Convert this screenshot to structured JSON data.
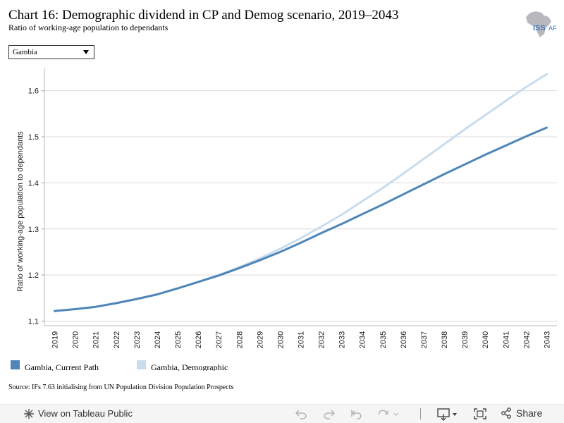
{
  "header": {
    "title": "Chart 16: Demographic dividend in CP and Demog scenario, 2019–2043",
    "subtitle": "Ratio of working-age population to dependants",
    "logo_text": "ISS",
    "logo_suffix": "AF"
  },
  "filter": {
    "selected": "Gambia"
  },
  "chart_data": {
    "type": "line",
    "title": "Chart 16: Demographic dividend in CP and Demog scenario, 2019–2043",
    "subtitle": "Ratio of working-age population to dependants",
    "xlabel": "",
    "ylabel": "Ratio of working-age population to dependants",
    "ylim": [
      1.09,
      1.65
    ],
    "yticks": [
      1.1,
      1.2,
      1.3,
      1.4,
      1.5,
      1.6
    ],
    "grid": true,
    "legend": "bottom-left",
    "x": [
      "2019",
      "2020",
      "2021",
      "2022",
      "2023",
      "2024",
      "2025",
      "2026",
      "2027",
      "2028",
      "2029",
      "2030",
      "2031",
      "2032",
      "2033",
      "2034",
      "2035",
      "2036",
      "2037",
      "2038",
      "2039",
      "2040",
      "2041",
      "2042",
      "2043"
    ],
    "series": [
      {
        "name": "Gambia, Current Path",
        "color": "#4f86b8",
        "values": [
          1.122,
          1.126,
          1.131,
          1.139,
          1.148,
          1.158,
          1.171,
          1.185,
          1.199,
          1.215,
          1.232,
          1.25,
          1.27,
          1.291,
          1.311,
          1.332,
          1.353,
          1.375,
          1.397,
          1.419,
          1.44,
          1.461,
          1.481,
          1.501,
          1.52
        ]
      },
      {
        "name": "Gambia, Demographic",
        "color": "#c9dced",
        "values": [
          1.122,
          1.126,
          1.131,
          1.139,
          1.148,
          1.158,
          1.171,
          1.185,
          1.2,
          1.217,
          1.236,
          1.257,
          1.28,
          1.305,
          1.331,
          1.36,
          1.389,
          1.42,
          1.452,
          1.484,
          1.516,
          1.547,
          1.578,
          1.608,
          1.636
        ]
      }
    ]
  },
  "source": "Source: IFs 7.63 initialising from UN Population Division Population Prospects",
  "toolbar": {
    "view_label": "View on Tableau Public",
    "share_label": "Share"
  }
}
